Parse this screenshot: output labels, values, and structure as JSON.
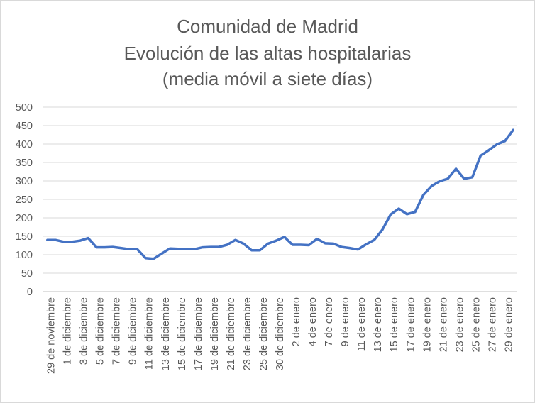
{
  "chart_data": {
    "type": "line",
    "title_lines": [
      "Comunidad de Madrid",
      "Evolución de las altas hospitalarias",
      "(media móvil a siete días)"
    ],
    "xlabel": "",
    "ylabel": "",
    "ylim": [
      0,
      500
    ],
    "yticks": [
      0,
      50,
      100,
      150,
      200,
      250,
      300,
      350,
      400,
      450,
      500
    ],
    "grid": true,
    "legend": "none",
    "line_color": "#4472C4",
    "x_labels": [
      "29 de noviembre",
      "1 de diciembre",
      "3 de diciembre",
      "5 de diciembre",
      "7 de diciembre",
      "9 de diciembre",
      "11 de diciembre",
      "13 de diciembre",
      "15 de diciembre",
      "17 de diciembre",
      "19 de diciembre",
      "21 de diciembre",
      "23 de diciembre",
      "25 de diciembre",
      "30 de diciembre",
      "2 de enero",
      "4 de enero",
      "7 de enero",
      "9 de enero",
      "11 de enero",
      "13 de enero",
      "15 de enero",
      "17 de enero",
      "19 de enero",
      "21 de enero",
      "23 de enero",
      "25 de enero",
      "27 de enero",
      "29 de enero"
    ],
    "series": [
      {
        "values": [
          140,
          140,
          135,
          135,
          138,
          145,
          120,
          120,
          121,
          118,
          115,
          115,
          91,
          89,
          103,
          117,
          116,
          115,
          115,
          120,
          121,
          121,
          127,
          140,
          130,
          112,
          112,
          130,
          138,
          148,
          127,
          127,
          126,
          143,
          131,
          130,
          121,
          118,
          114,
          128,
          140,
          168,
          209,
          225,
          210,
          216,
          262,
          286,
          299,
          306,
          333,
          306,
          310,
          368,
          383,
          399,
          408,
          438
        ]
      }
    ]
  }
}
